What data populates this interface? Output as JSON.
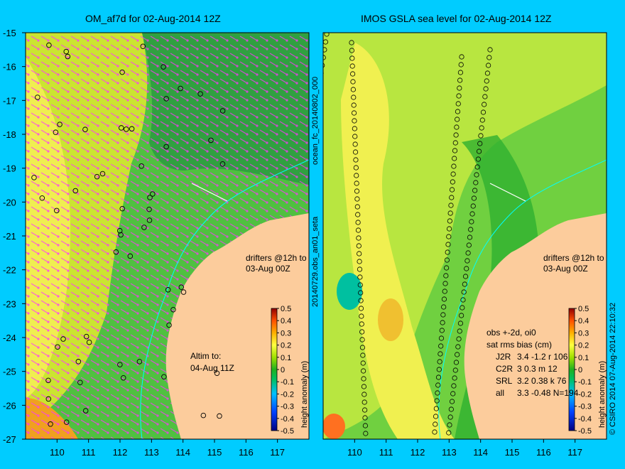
{
  "left_panel": {
    "title": "OM_af7d for 02-Aug-2014 12Z",
    "drifter_note_1": "drifters @12h to",
    "drifter_note_2": "03-Aug 00Z",
    "altim_label_1": "Altim to:",
    "altim_label_2": "04-Aug 11Z"
  },
  "right_panel": {
    "title": "IMOS GSLA sea level  for 02-Aug-2014 12Z",
    "drifter_note_1": "drifters @12h to",
    "drifter_note_2": "03-Aug 00Z",
    "stats": {
      "header_1": "obs +-2d, oi0",
      "header_2": "sat rms bias (cm)",
      "rows": [
        {
          "sat": "J2R",
          "vals": "3.4  -1.2  r 106"
        },
        {
          "sat": "C2R",
          "vals": "3  0.3  m 12"
        },
        {
          "sat": "SRL",
          "vals": "3.2  0.38  k 76"
        },
        {
          "sat": "all",
          "vals": "3.3  -0.48  N=194"
        }
      ]
    }
  },
  "axes": {
    "lat_ticks": [
      "-15",
      "-16",
      "-17",
      "-18",
      "-19",
      "-20",
      "-21",
      "-22",
      "-23",
      "-24",
      "-25",
      "-26",
      "-27"
    ],
    "lon_ticks": [
      "110",
      "111",
      "112",
      "113",
      "114",
      "115",
      "116",
      "117"
    ],
    "lat_range": [
      -27,
      -15
    ],
    "lon_range": [
      109,
      118
    ]
  },
  "colorbar": {
    "label": "height anomaly (m)",
    "ticks": [
      "0.5",
      "0.4",
      "0.3",
      "0.2",
      "0.1",
      "0",
      "-0.1",
      "-0.2",
      "-0.3",
      "-0.4",
      "-0.5"
    ],
    "range": [
      -0.5,
      0.5
    ]
  },
  "side_labels": {
    "run_id": "ocean_fc_20140802_000",
    "obs_id": "20140729.obs_an01_seta",
    "footer": "© CSIRO 2014   07-Aug-2014 22:10:32"
  },
  "colors": {
    "background": "#00ccff",
    "land": "#fccc9c",
    "drifters": "#ff33ff",
    "coast_line": "#00ffff"
  }
}
